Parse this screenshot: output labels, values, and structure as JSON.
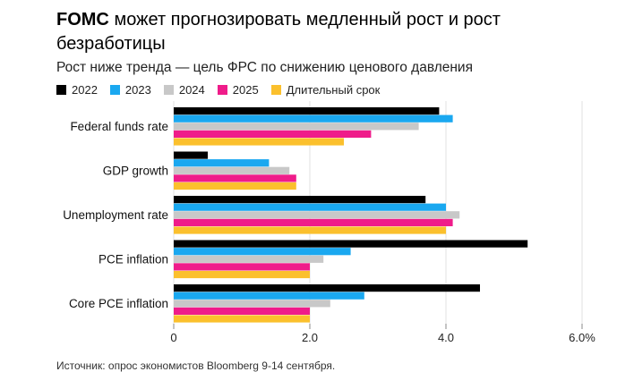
{
  "header": {
    "brand": "FOMC",
    "title_rest": "может прогнозировать медленный рост и рост безработицы",
    "subtitle": "Рост ниже тренда — цель ФРС по снижению ценового давления"
  },
  "source": "Источник: опрос экономистов Bloomberg 9-14 сентября.",
  "chart_data": {
    "type": "bar",
    "orientation": "horizontal",
    "categories": [
      "Federal funds rate",
      "GDP growth",
      "Unemployment rate",
      "PCE inflation",
      "Core PCE inflation"
    ],
    "series": [
      {
        "name": "2022",
        "color": "#000000",
        "values": [
          3.9,
          0.5,
          3.7,
          5.2,
          4.5
        ]
      },
      {
        "name": "2023",
        "color": "#1aa8f0",
        "values": [
          4.1,
          1.4,
          4.0,
          2.6,
          2.8
        ]
      },
      {
        "name": "2024",
        "color": "#c8c8c8",
        "values": [
          3.6,
          1.7,
          4.2,
          2.2,
          2.3
        ]
      },
      {
        "name": "2025",
        "color": "#ef1c8a",
        "values": [
          2.9,
          1.8,
          4.1,
          2.0,
          2.0
        ]
      },
      {
        "name": "Длительный срок",
        "color": "#fbc02d",
        "values": [
          2.5,
          1.8,
          4.0,
          2.0,
          2.0
        ]
      }
    ],
    "xlim": [
      0,
      6
    ],
    "ticks": [
      0,
      2,
      4,
      6
    ],
    "tick_labels": [
      "0",
      "2.0",
      "4.0",
      "6.0%"
    ],
    "gridlines": true,
    "legend_position": "top-left"
  }
}
